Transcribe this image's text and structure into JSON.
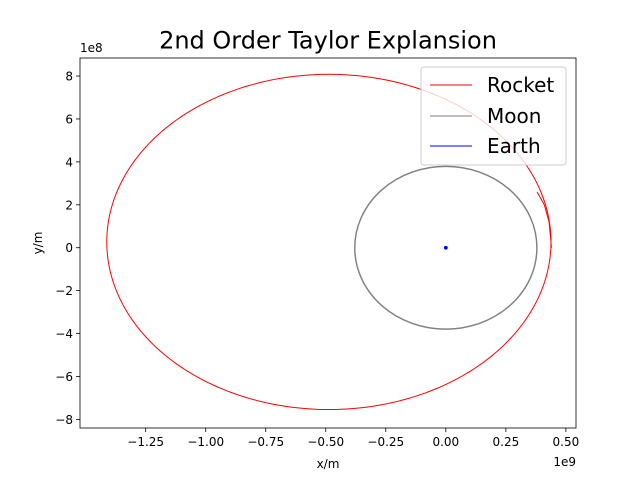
{
  "chart_data": {
    "type": "line",
    "title": "2nd Order Taylor Explansion",
    "xlabel": "x/m",
    "ylabel": "y/m",
    "x_offset_text": "1e9",
    "y_offset_text": "1e8",
    "x_scale": 1000000000,
    "y_scale": 100000000,
    "xlim": [
      -1.5235,
      0.5421
    ],
    "ylim": [
      -8.4,
      8.84
    ],
    "x_ticks": [
      {
        "value": -1.25,
        "label": "−1.25"
      },
      {
        "value": -1.0,
        "label": "−1.00"
      },
      {
        "value": -0.75,
        "label": "−0.75"
      },
      {
        "value": -0.5,
        "label": "−0.50"
      },
      {
        "value": -0.25,
        "label": "−0.25"
      },
      {
        "value": 0.0,
        "label": "0.00"
      },
      {
        "value": 0.25,
        "label": "0.25"
      },
      {
        "value": 0.5,
        "label": "0.50"
      }
    ],
    "y_ticks": [
      {
        "value": -8,
        "label": "−8"
      },
      {
        "value": -6,
        "label": "−6"
      },
      {
        "value": -4,
        "label": "−4"
      },
      {
        "value": -2,
        "label": "−2"
      },
      {
        "value": 0,
        "label": "0"
      },
      {
        "value": 2,
        "label": "2"
      },
      {
        "value": 4,
        "label": "4"
      },
      {
        "value": 6,
        "label": "6"
      },
      {
        "value": 8,
        "label": "8"
      }
    ],
    "grid": false,
    "legend_position": "upper right",
    "series": [
      {
        "name": "Rocket",
        "color": "#ff0000",
        "shape": "ellipse_orbit",
        "center_x": -0.487,
        "center_y": 0.27,
        "semi_axis_x": 0.925,
        "semi_axis_y": 7.81,
        "start_x": 0.44,
        "start_y": 0.0,
        "tail": [
          [
            0.38,
            2.6
          ],
          [
            0.41,
            2.0
          ],
          [
            0.43,
            1.2
          ],
          [
            0.44,
            0.0
          ]
        ]
      },
      {
        "name": "Moon",
        "color": "#808080",
        "shape": "circle_orbit",
        "center_x": 0.0,
        "center_y": 0.0,
        "radius_x": 0.38,
        "radius_y": 3.8
      },
      {
        "name": "Earth",
        "color": "#0000ff",
        "shape": "point",
        "x": 0.0,
        "y": 0.0
      }
    ]
  }
}
